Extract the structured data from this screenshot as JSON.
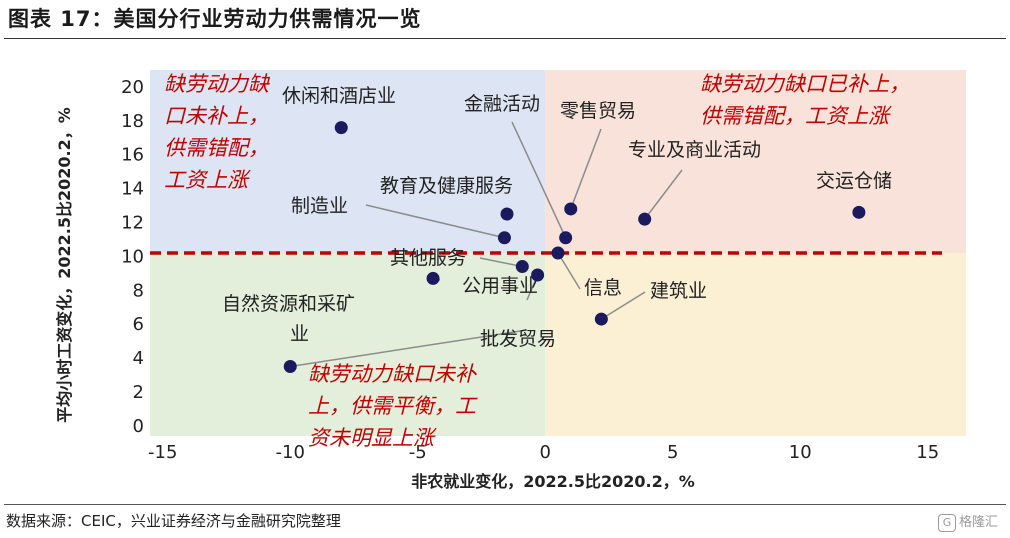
{
  "title": "图表 17：美国分行业劳动力供需情况一览",
  "source": "数据来源：CEIC，兴业证券经济与金融研究院整理",
  "watermark": {
    "icon": "G",
    "text": "格隆汇"
  },
  "colors": {
    "quadrant_top_left": "#dde4f4",
    "quadrant_top_right": "#f8e2da",
    "quadrant_bottom_left": "#e3eedb",
    "quadrant_bottom_right": "#fbf0d4",
    "point": "#1c1a5e",
    "threshold_line": "#c00000",
    "annotation": "#c00000"
  },
  "chart_data": {
    "type": "scatter",
    "xlabel": "非农就业变化，2022.5比2020.2，%",
    "ylabel": "平均小时工资变化，2022.5比2020.2，%",
    "xlim": [
      -15.5,
      16.5
    ],
    "ylim": [
      -0.6,
      21
    ],
    "xticks": [
      -15,
      -10,
      -5,
      0,
      5,
      10,
      15
    ],
    "xtick_labels": [
      "-15",
      "-10",
      "-5",
      "0",
      "5",
      "10",
      "15"
    ],
    "yticks": [
      0,
      2,
      4,
      6,
      8,
      10,
      12,
      14,
      16,
      18,
      20
    ],
    "ytick_labels": [
      "0",
      "2",
      "4",
      "6",
      "8",
      "10",
      "12",
      "14",
      "16",
      "18",
      "20"
    ],
    "threshold_y": 10.2,
    "points": [
      {
        "label": "休闲和酒店业",
        "x": -8.0,
        "y": 17.6
      },
      {
        "label": "交运仓储",
        "x": 12.3,
        "y": 12.6
      },
      {
        "label": "专业及商业活动",
        "x": 3.9,
        "y": 12.2
      },
      {
        "label": "零售贸易",
        "x": 1.0,
        "y": 12.8
      },
      {
        "label": "金融活动",
        "x": 0.8,
        "y": 11.1
      },
      {
        "label": "教育及健康服务",
        "x": -1.5,
        "y": 12.5
      },
      {
        "label": "制造业",
        "x": -1.6,
        "y": 11.1
      },
      {
        "label": "信息",
        "x": 0.5,
        "y": 10.2
      },
      {
        "label": "其他服务",
        "x": -0.9,
        "y": 9.4
      },
      {
        "label": "公用事业",
        "x": -0.3,
        "y": 8.9
      },
      {
        "label": "建筑业",
        "x": 2.2,
        "y": 6.3
      },
      {
        "label": "自然资源和采矿业",
        "x": -4.4,
        "y": 8.7
      },
      {
        "label": "批发贸易",
        "x": -10.0,
        "y": 3.5
      }
    ],
    "annotations": [
      {
        "text": "缺劳动力缺口未补上，供需错配，工资上涨",
        "lines": [
          "缺劳动力缺",
          "口未补上，",
          "供需错配，",
          "工资上涨"
        ]
      },
      {
        "text": "缺劳动力缺口已补上，供需错配，工资上涨",
        "lines": [
          "缺劳动力缺口已补上，",
          "供需错配，工资上涨"
        ]
      },
      {
        "text": "缺劳动力缺口未补上，供需平衡，工资未明显上涨",
        "lines": [
          "缺劳动力缺口未补",
          "上，供需平衡，工",
          "资未明显上涨"
        ]
      }
    ]
  }
}
